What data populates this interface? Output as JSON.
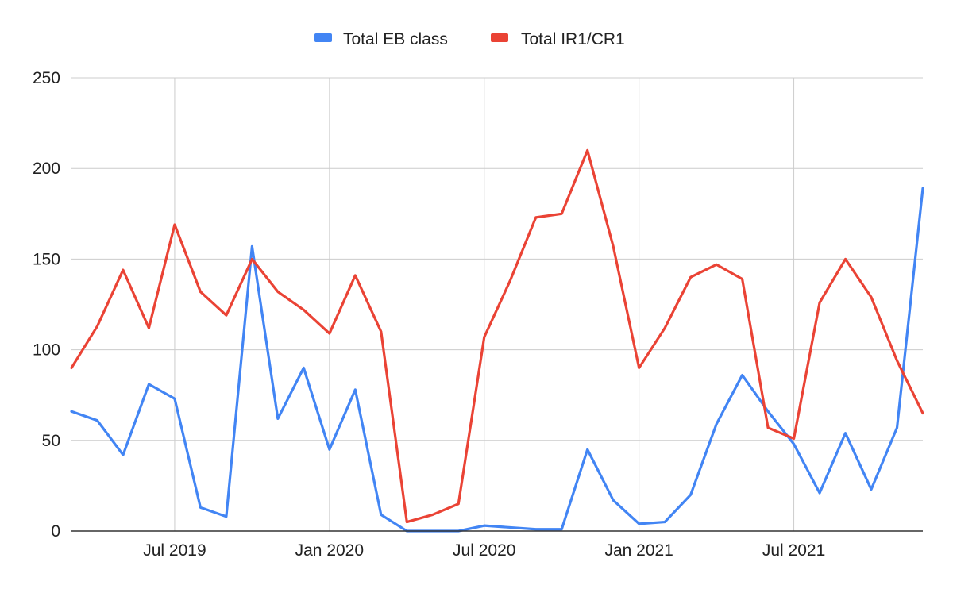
{
  "chart_data": {
    "type": "line",
    "x": [
      "2019-03",
      "2019-04",
      "2019-05",
      "2019-06",
      "2019-07",
      "2019-08",
      "2019-09",
      "2019-10",
      "2019-11",
      "2019-12",
      "2020-01",
      "2020-02",
      "2020-03",
      "2020-04",
      "2020-05",
      "2020-06",
      "2020-07",
      "2020-08",
      "2020-09",
      "2020-10",
      "2020-11",
      "2020-12",
      "2021-01",
      "2021-02",
      "2021-03",
      "2021-04",
      "2021-05",
      "2021-06",
      "2021-07",
      "2021-08",
      "2021-09",
      "2021-10",
      "2021-11",
      "2021-12"
    ],
    "series": [
      {
        "name": "Total EB class",
        "color": "#4285f4",
        "values": [
          66,
          61,
          42,
          81,
          73,
          13,
          8,
          157,
          62,
          90,
          45,
          78,
          9,
          0,
          0,
          0,
          3,
          2,
          1,
          1,
          45,
          17,
          4,
          5,
          20,
          59,
          86,
          66,
          48,
          21,
          54,
          23,
          57,
          189
        ]
      },
      {
        "name": "Total IR1/CR1",
        "color": "#ea4335",
        "values": [
          90,
          113,
          144,
          112,
          169,
          132,
          119,
          150,
          132,
          122,
          109,
          141,
          110,
          5,
          9,
          15,
          107,
          138,
          173,
          175,
          210,
          157,
          90,
          112,
          140,
          147,
          139,
          57,
          51,
          126,
          150,
          129,
          94,
          65
        ]
      }
    ],
    "x_ticks": [
      {
        "label": "Jul 2019",
        "value": "2019-07"
      },
      {
        "label": "Jan 2020",
        "value": "2020-01"
      },
      {
        "label": "Jul 2020",
        "value": "2020-07"
      },
      {
        "label": "Jan 2021",
        "value": "2021-01"
      },
      {
        "label": "Jul 2021",
        "value": "2021-07"
      }
    ],
    "y_ticks": [
      0,
      50,
      100,
      150,
      200,
      250
    ],
    "ylim": [
      0,
      250
    ],
    "grid": true,
    "legend_position": "top-center"
  }
}
